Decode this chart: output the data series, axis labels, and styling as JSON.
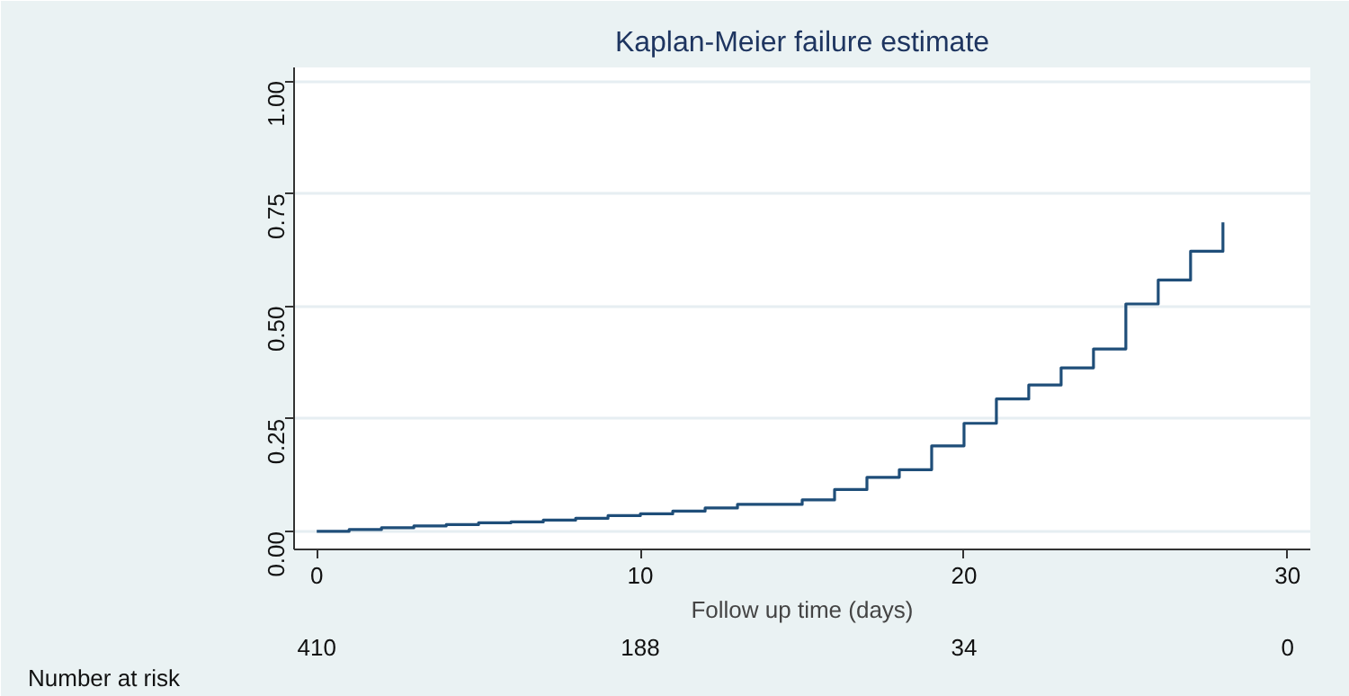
{
  "chart_data": {
    "type": "step",
    "title": "Kaplan-Meier failure estimate",
    "xlabel": "Follow up time (days)",
    "x": [
      0,
      1,
      2,
      3,
      4,
      5,
      6,
      7,
      8,
      9,
      10,
      11,
      12,
      13,
      14,
      15,
      16,
      17,
      18,
      19,
      20,
      21,
      22,
      23,
      24,
      25,
      26,
      27,
      28
    ],
    "series": [
      {
        "color": "#1f4e79",
        "values": [
          0,
          0.004,
          0.008,
          0.012,
          0.015,
          0.019,
          0.021,
          0.025,
          0.029,
          0.035,
          0.039,
          0.045,
          0.052,
          0.06,
          0.06,
          0.07,
          0.093,
          0.12,
          0.137,
          0.19,
          0.24,
          0.294,
          0.325,
          0.363,
          0.405,
          0.505,
          0.558,
          0.622,
          0.686
        ]
      }
    ],
    "xlim": [
      -0.7,
      30.7
    ],
    "ylim": [
      -0.04,
      1.03
    ],
    "xticks": [
      0,
      10,
      20,
      30
    ],
    "yticks": [
      {
        "value": 0,
        "label": "0.00"
      },
      {
        "value": 0.25,
        "label": "0.25"
      },
      {
        "value": 0.5,
        "label": "0.50"
      },
      {
        "value": 0.75,
        "label": "0.75"
      },
      {
        "value": 1,
        "label": "1.00"
      }
    ],
    "grid": "y",
    "annotations": [
      "Number at risk",
      "410",
      "188",
      "34",
      "0"
    ]
  }
}
